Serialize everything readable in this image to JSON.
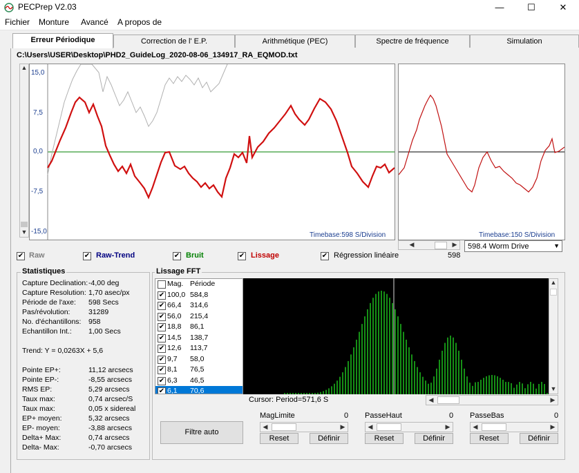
{
  "window": {
    "title": "PECPrep V2.03",
    "minimize": "—",
    "maximize": "☐",
    "close": "✕"
  },
  "menu": [
    "Fichier",
    "Monture",
    "Avancé",
    "A propos de"
  ],
  "tabs": [
    "Erreur Périodique",
    "Correction de l' E.P.",
    "Arithmétique (PEC)",
    "Spectre de fréquence",
    "Simulation"
  ],
  "file_path": "C:\\Users\\USER\\Desktop\\PHD2_GuideLog_2020-08-06_134917_RA_EQMOD.txt",
  "main_plot": {
    "y_ticks": [
      "15,0",
      "7,5",
      "0,0",
      "-7,5",
      "-15,0"
    ],
    "timebase": "Timebase:598 S/Division"
  },
  "worm_plot": {
    "timebase": "Timebase:150 S/Division",
    "period_value": "598",
    "worm_drive": "598.4 Worm Drive"
  },
  "toggles": [
    {
      "label": "Raw",
      "checked": true,
      "color": "#808080"
    },
    {
      "label": "Raw-Trend",
      "checked": true,
      "color": "#000080"
    },
    {
      "label": "Bruit",
      "checked": true,
      "color": "#008000"
    },
    {
      "label": "Lissage",
      "checked": true,
      "color": "#c00000"
    },
    {
      "label": "Régression linéaire",
      "checked": true,
      "color": "#000000"
    }
  ],
  "stats": {
    "title": "Statistiques",
    "rows": [
      [
        "Capture Declination:",
        "-4,00 deg"
      ],
      [
        "Capture Resolution:",
        "1,70 asec/px"
      ],
      [
        "Période de l'axe:",
        "598 Secs"
      ],
      [
        "Pas/révolution:",
        "31289"
      ],
      [
        "No. d'échantillons:",
        "958"
      ],
      [
        "Echantillon Int.:",
        "1,00 Secs"
      ]
    ],
    "trend": "Trend: Y = 0,0263X + 5,6",
    "rows2": [
      [
        "Pointe EP+:",
        "11,12 arcsecs"
      ],
      [
        "Pointe EP-:",
        "-8,55 arcsecs"
      ],
      [
        "RMS EP:",
        "5,29 arcsecs"
      ],
      [
        "Taux max:",
        "0,74 arcsec/S"
      ],
      [
        "Taux max:",
        "0,05 x sidereal"
      ],
      [
        "EP+ moyen:",
        "5,32 arcsecs"
      ],
      [
        "EP- moyen:",
        "-3,88 arcsecs"
      ],
      [
        "Delta+ Max:",
        "0,74 arcsecs"
      ],
      [
        "Delta- Max:",
        "-0,70 arcsecs"
      ]
    ]
  },
  "fft": {
    "title": "Lissage FFT",
    "col_mag": "Mag.",
    "col_period": "Période",
    "rows": [
      [
        "100,0",
        "584,8"
      ],
      [
        "66,4",
        "314,6"
      ],
      [
        "56,0",
        "215,4"
      ],
      [
        "18,8",
        "86,1"
      ],
      [
        "14,5",
        "138,7"
      ],
      [
        "12,6",
        "113,7"
      ],
      [
        "9,7",
        "58,0"
      ],
      [
        "8,1",
        "76,5"
      ],
      [
        "6,3",
        "46,5"
      ],
      [
        "6,1",
        "70,6"
      ]
    ],
    "cursor": "Cursor: Period=571,6 S"
  },
  "filter_auto": "Filtre auto",
  "sliders": [
    {
      "label": "MagLimite",
      "value": "0",
      "reset": "Reset",
      "define": "Définir"
    },
    {
      "label": "PasseHaut",
      "value": "0",
      "reset": "Reset",
      "define": "Définir"
    },
    {
      "label": "PasseBas",
      "value": "0",
      "reset": "Reset",
      "define": "Définir"
    }
  ]
}
